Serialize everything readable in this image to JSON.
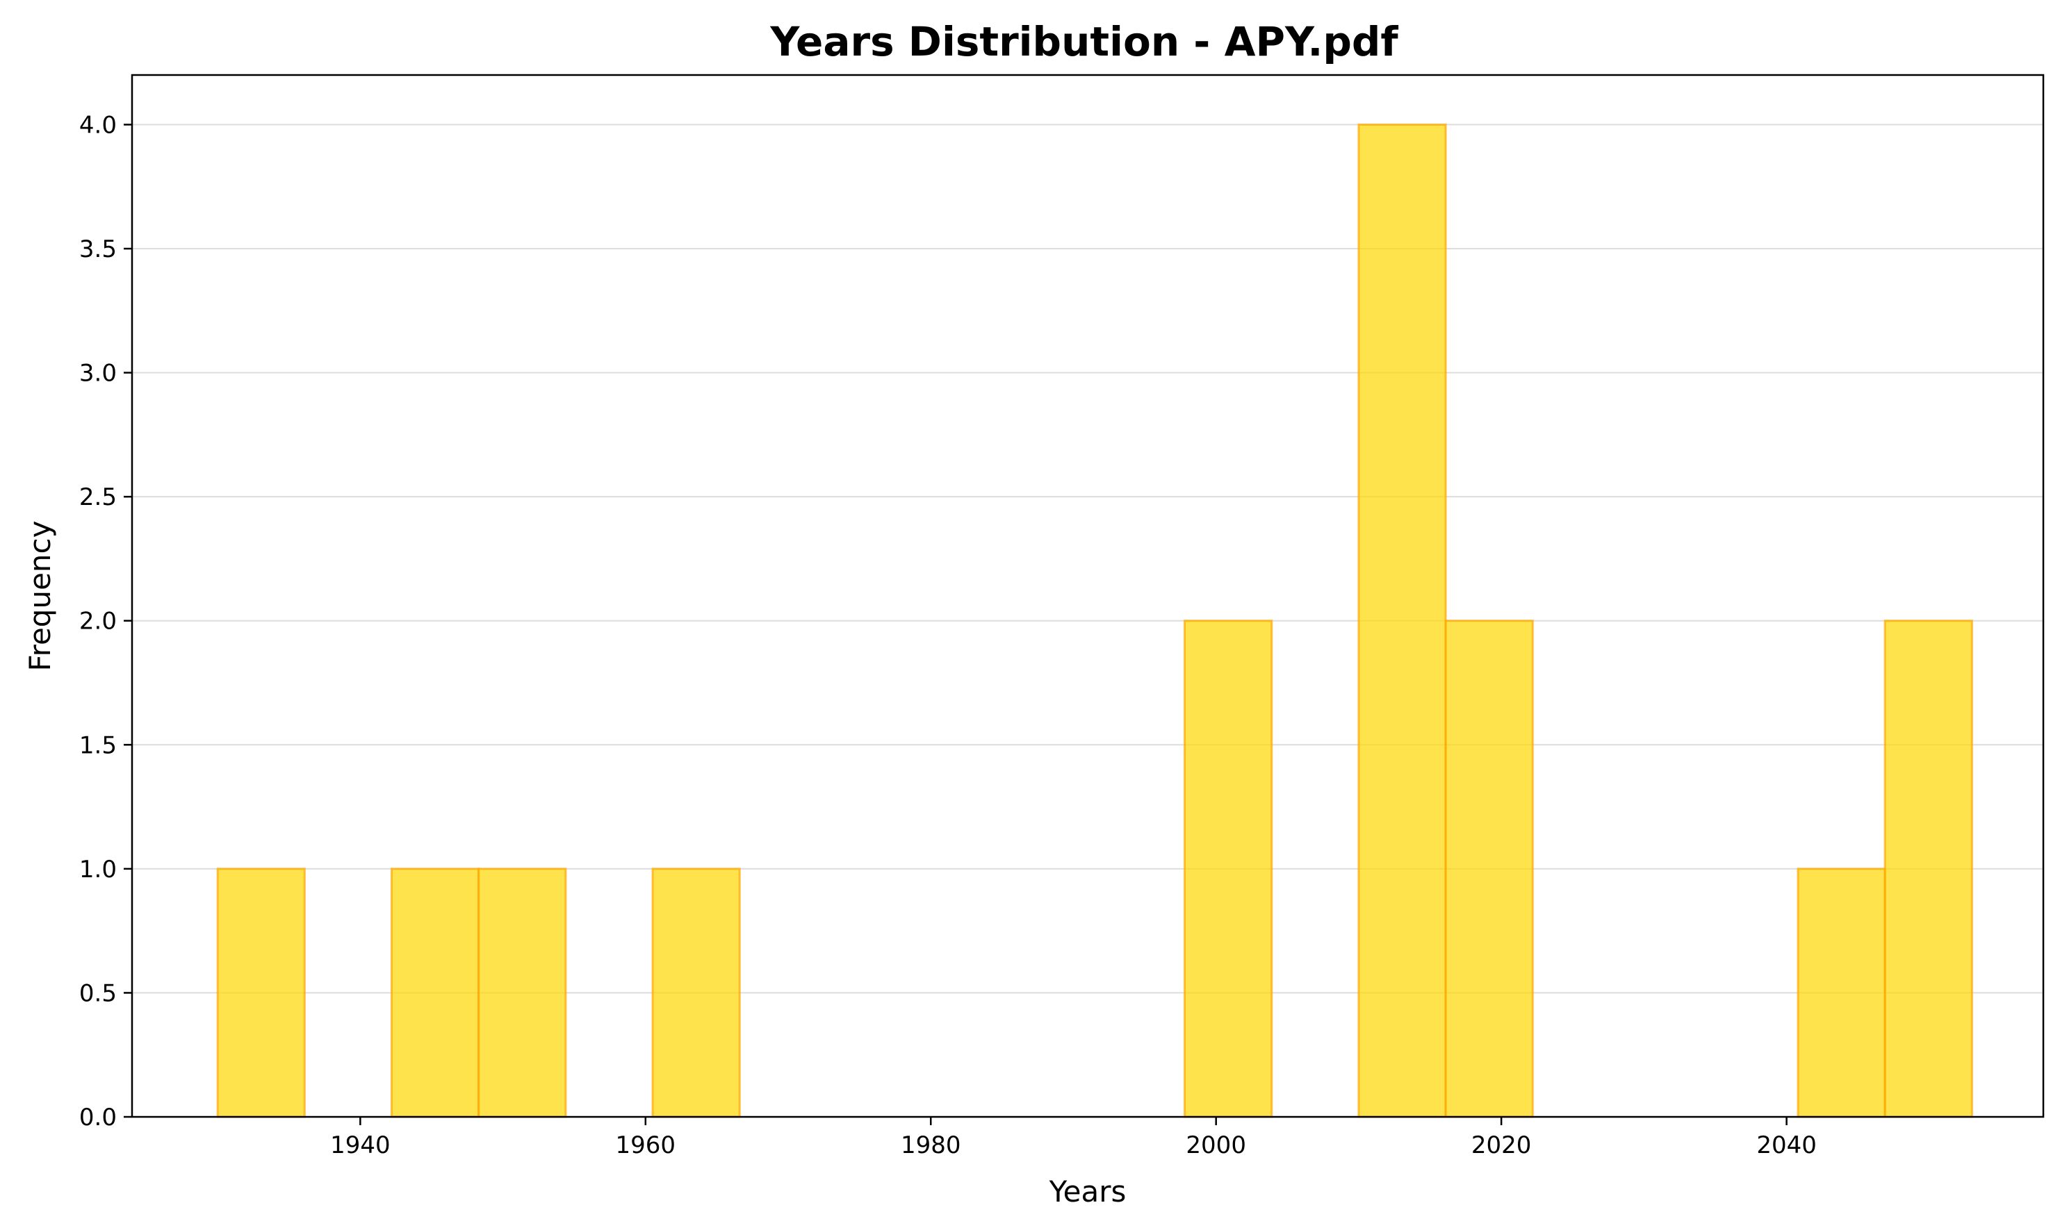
{
  "chart_data": {
    "type": "bar",
    "subtype": "histogram",
    "title": "Years Distribution - APY.pdf",
    "xlabel": "Years",
    "ylabel": "Frequency",
    "xlim": [
      1924,
      2058
    ],
    "ylim": [
      0,
      4.2
    ],
    "xticks": [
      1940,
      1960,
      1980,
      2000,
      2020,
      2040
    ],
    "yticks": [
      0.0,
      0.5,
      1.0,
      1.5,
      2.0,
      2.5,
      3.0,
      3.5,
      4.0
    ],
    "ytick_labels": [
      "0.0",
      "0.5",
      "1.0",
      "1.5",
      "2.0",
      "2.5",
      "3.0",
      "3.5",
      "4.0"
    ],
    "grid": {
      "axis": "y",
      "on": true
    },
    "bins": [
      {
        "start": 1930.0,
        "end": 1936.1,
        "count": 1
      },
      {
        "start": 1942.2,
        "end": 1948.3,
        "count": 1
      },
      {
        "start": 1948.3,
        "end": 1954.4,
        "count": 1
      },
      {
        "start": 1960.5,
        "end": 1966.6,
        "count": 1
      },
      {
        "start": 1997.8,
        "end": 2003.9,
        "count": 2
      },
      {
        "start": 2010.0,
        "end": 2016.1,
        "count": 4
      },
      {
        "start": 2016.1,
        "end": 2022.2,
        "count": 2
      },
      {
        "start": 2040.8,
        "end": 2046.9,
        "count": 1
      },
      {
        "start": 2046.9,
        "end": 2053.0,
        "count": 2
      }
    ],
    "colors": {
      "bar_fill": "#FFD700",
      "bar_edge": "#FFA500",
      "grid": "#dddddd",
      "axes": "#000000"
    }
  }
}
